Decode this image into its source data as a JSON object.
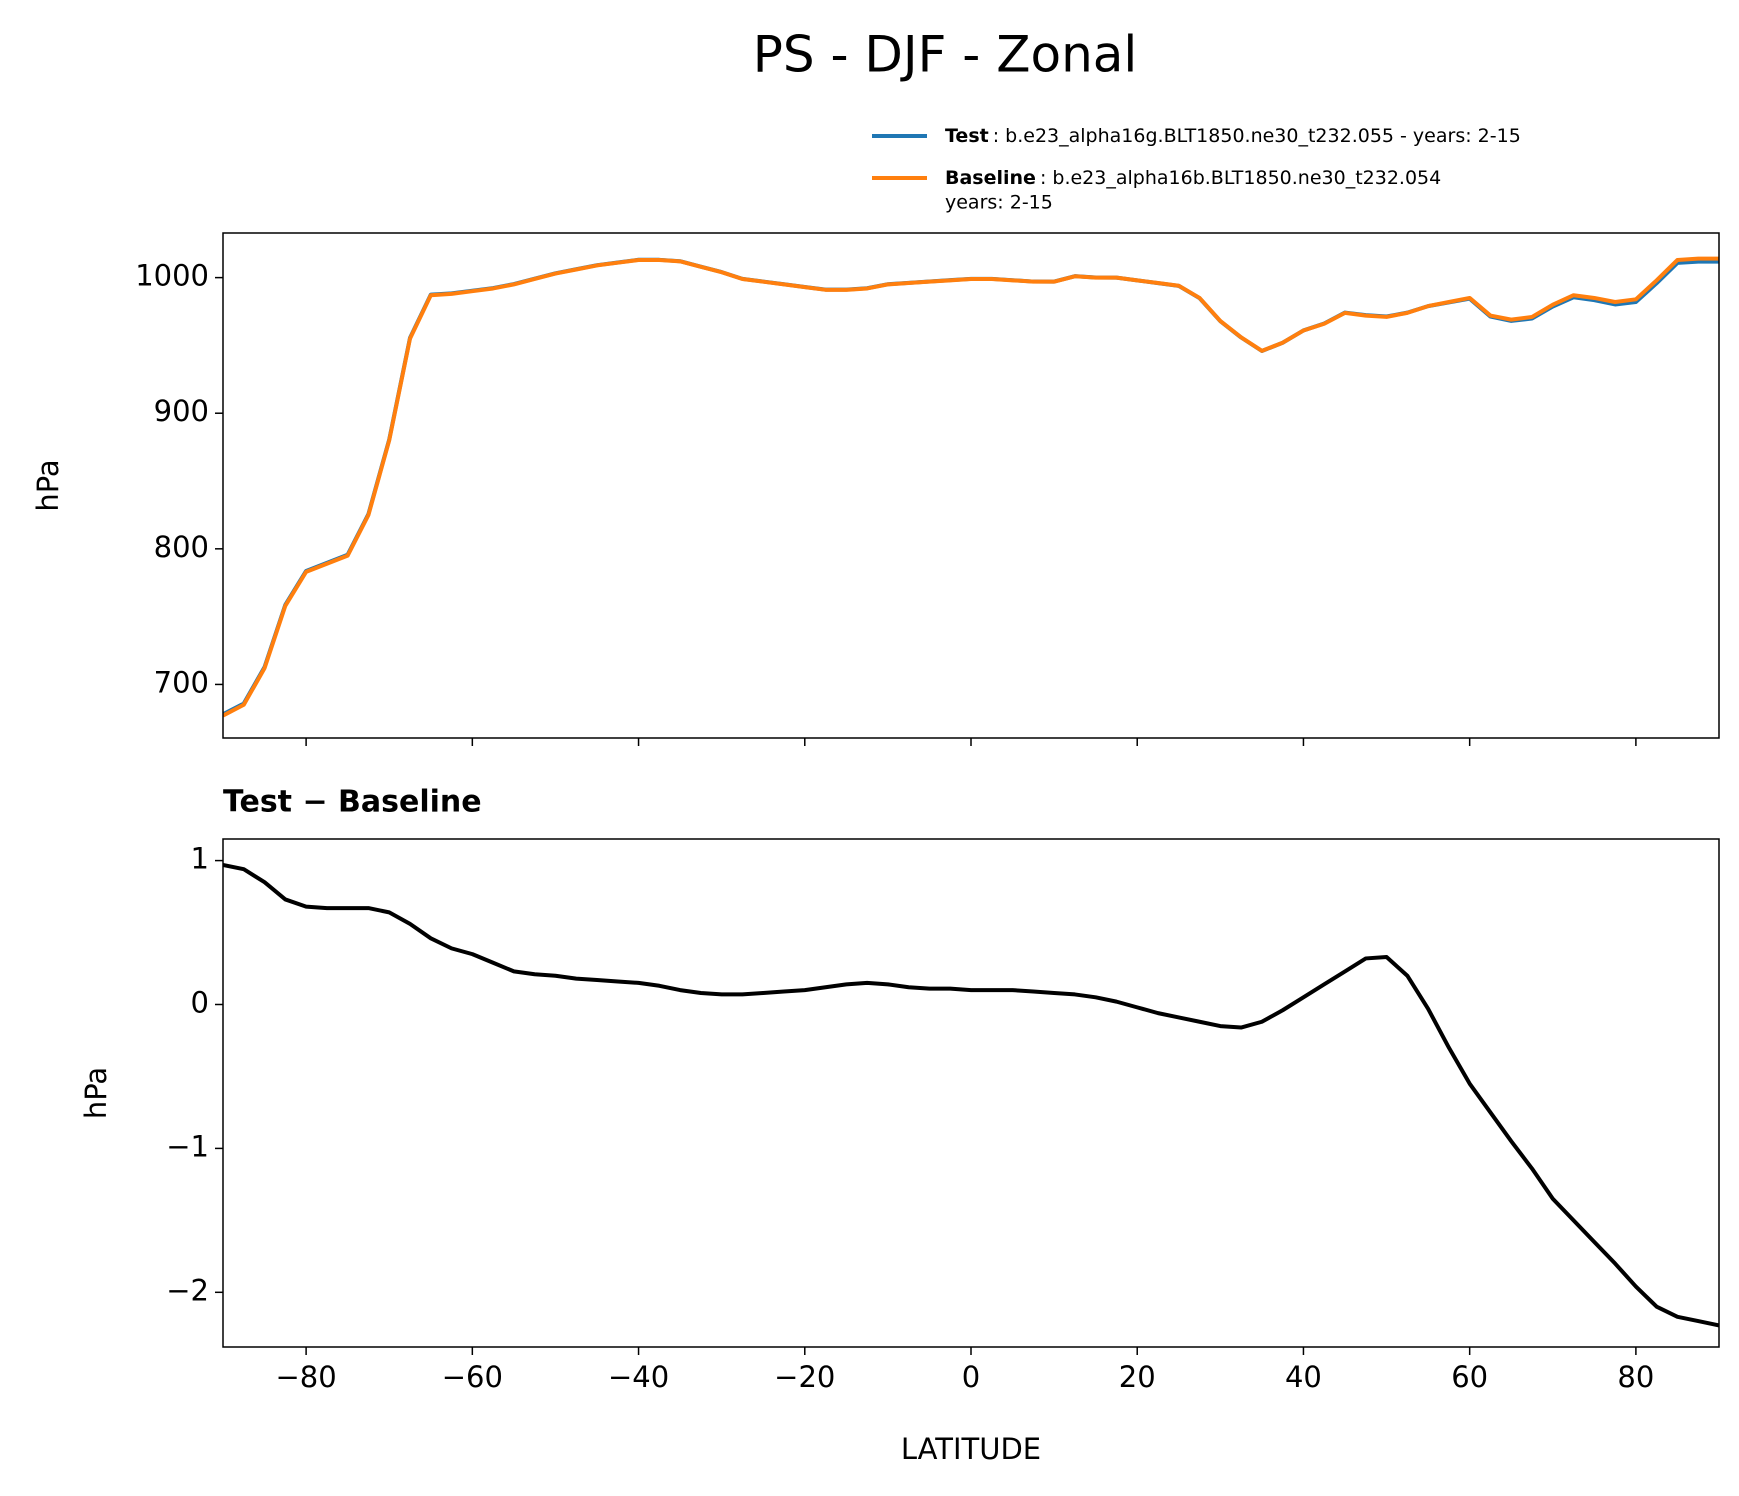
{
  "title": "PS - DJF - Zonal",
  "chart_data": [
    {
      "type": "line",
      "ylabel": "hPa",
      "x": [
        -90,
        -87.5,
        -85,
        -82.5,
        -80,
        -77.5,
        -75,
        -72.5,
        -70,
        -67.5,
        -65,
        -62.5,
        -60,
        -57.5,
        -55,
        -52.5,
        -50,
        -47.5,
        -45,
        -42.5,
        -40,
        -37.5,
        -35,
        -32.5,
        -30,
        -27.5,
        -25,
        -22.5,
        -20,
        -17.5,
        -15,
        -12.5,
        -10,
        -7.5,
        -5,
        -2.5,
        0,
        2.5,
        5,
        7.5,
        10,
        12.5,
        15,
        17.5,
        20,
        22.5,
        25,
        27.5,
        30,
        32.5,
        35,
        37.5,
        40,
        42.5,
        45,
        47.5,
        50,
        52.5,
        55,
        57.5,
        60,
        62.5,
        65,
        67.5,
        70,
        72.5,
        75,
        77.5,
        80,
        82.5,
        85,
        87.5,
        90
      ],
      "series": [
        {
          "name": "Test",
          "description": [
            ": b.e23_alpha16g.BLT1850.ne30_t232.055 - years: 2-15"
          ],
          "color": "#1f77b4",
          "values": [
            677.97,
            685.94,
            712.85,
            758.73,
            783.68,
            789.67,
            795.67,
            825.67,
            880.64,
            955.56,
            987.46,
            988.39,
            990.35,
            992.29,
            995.23,
            999.21,
            1003.2,
            1006.18,
            1009.17,
            1011.16,
            1013.15,
            1013.13,
            1012.1,
            1008.08,
            1004.07,
            999.07,
            997.08,
            995.09,
            993.1,
            991.12,
            991.14,
            992.15,
            995.14,
            996.12,
            997.11,
            998.11,
            999.1,
            999.1,
            998.1,
            997.09,
            997.08,
            1001.07,
            1000.05,
            1000.02,
            997.98,
            995.94,
            993.91,
            984.88,
            967.85,
            955.84,
            945.88,
            951.96,
            961.05,
            966.14,
            974.23,
            972.32,
            971.33,
            974.2,
            978.97,
            981.7,
            984.45,
            971.25,
            968.05,
            969.86,
            978.65,
            985.5,
            983.35,
            980.2,
            982.04,
            995.9,
            1010.83,
            1011.8,
            1011.77
          ]
        },
        {
          "name": "Baseline",
          "description": [
            ": b.e23_alpha16b.BLT1850.ne30_t232.054",
            "years: 2-15"
          ],
          "color": "#ff7f0e",
          "values": [
            677,
            685,
            712,
            758,
            783,
            789,
            795,
            825,
            880,
            955,
            987,
            988,
            990,
            992,
            995,
            999,
            1003,
            1006,
            1009,
            1011,
            1013,
            1013,
            1012,
            1008,
            1004,
            999,
            997,
            995,
            993,
            991,
            991,
            992,
            995,
            996,
            997,
            998,
            999,
            999,
            998,
            997,
            997,
            1001,
            1000,
            1000,
            998,
            996,
            994,
            985,
            968,
            956,
            946,
            952,
            961,
            966,
            974,
            972,
            971,
            974,
            979,
            982,
            985,
            972,
            969,
            971,
            980,
            987,
            985,
            982,
            984,
            998,
            1013,
            1014,
            1014
          ]
        }
      ],
      "xlim": [
        -90,
        90
      ],
      "ylim": [
        660.5,
        1032.9
      ],
      "yticks": [
        700,
        800,
        900,
        1000
      ]
    },
    {
      "type": "line",
      "title": "Test − Baseline",
      "xlabel": "LATITUDE",
      "ylabel": "hPa",
      "x": [
        -90,
        -87.5,
        -85,
        -82.5,
        -80,
        -77.5,
        -75,
        -72.5,
        -70,
        -67.5,
        -65,
        -62.5,
        -60,
        -57.5,
        -55,
        -52.5,
        -50,
        -47.5,
        -45,
        -42.5,
        -40,
        -37.5,
        -35,
        -32.5,
        -30,
        -27.5,
        -25,
        -22.5,
        -20,
        -17.5,
        -15,
        -12.5,
        -10,
        -7.5,
        -5,
        -2.5,
        0,
        2.5,
        5,
        7.5,
        10,
        12.5,
        15,
        17.5,
        20,
        22.5,
        25,
        27.5,
        30,
        32.5,
        35,
        37.5,
        40,
        42.5,
        45,
        47.5,
        50,
        52.5,
        55,
        57.5,
        60,
        62.5,
        65,
        67.5,
        70,
        72.5,
        75,
        77.5,
        80,
        82.5,
        85,
        87.5,
        90
      ],
      "series": [
        {
          "color": "#000000",
          "values": [
            0.97,
            0.94,
            0.85,
            0.73,
            0.68,
            0.67,
            0.67,
            0.67,
            0.64,
            0.56,
            0.46,
            0.39,
            0.35,
            0.29,
            0.23,
            0.21,
            0.2,
            0.18,
            0.17,
            0.16,
            0.15,
            0.13,
            0.1,
            0.08,
            0.07,
            0.07,
            0.08,
            0.09,
            0.1,
            0.12,
            0.14,
            0.15,
            0.14,
            0.12,
            0.11,
            0.11,
            0.1,
            0.1,
            0.1,
            0.09,
            0.08,
            0.07,
            0.05,
            0.02,
            -0.02,
            -0.06,
            -0.09,
            -0.12,
            -0.15,
            -0.16,
            -0.12,
            -0.04,
            0.05,
            0.14,
            0.23,
            0.32,
            0.33,
            0.2,
            -0.03,
            -0.3,
            -0.55,
            -0.75,
            -0.95,
            -1.14,
            -1.35,
            -1.5,
            -1.65,
            -1.8,
            -1.96,
            -2.1,
            -2.17,
            -2.2,
            -2.23
          ]
        }
      ],
      "xlim": [
        -90,
        90
      ],
      "xticks": [
        {
          "value": -80,
          "label": "−80"
        },
        {
          "value": -60,
          "label": "−60"
        },
        {
          "value": -40,
          "label": "−40"
        },
        {
          "value": -20,
          "label": "−20"
        },
        0,
        20,
        40,
        60,
        80
      ],
      "ylim": [
        -2.38,
        1.15
      ],
      "yticks": [
        {
          "value": -2,
          "label": "−2"
        },
        {
          "value": -1,
          "label": "−1"
        },
        0,
        1
      ]
    }
  ]
}
